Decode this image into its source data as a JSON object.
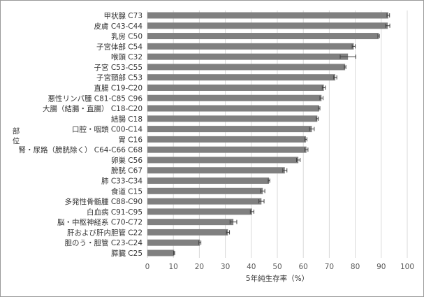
{
  "chart_data": {
    "type": "bar",
    "orientation": "horizontal",
    "xlabel": "5年純生存率（%）",
    "ylabel": "部位",
    "xlim": [
      0,
      100
    ],
    "xticks": [
      0,
      10,
      20,
      30,
      40,
      50,
      60,
      70,
      80,
      90,
      100
    ],
    "grid": true,
    "bar_color": "#808080",
    "categories": [
      "甲状腺 C73",
      "皮膚 C43-C44",
      "乳房 C50",
      "子宮体部 C54",
      "喉頭 C32",
      "子宮 C53-C55",
      "子宮頸部 C53",
      "直腸 C19-C20",
      "悪性リンパ腫 C81-C85 C96",
      "大腸（結腸・直腸） C18-C20",
      "結腸 C18",
      "口腔・咽頭 C00-C14",
      "胃 C16",
      "腎・尿路（膀胱除く） C64-C66 C68",
      "卵巣 C56",
      "膀胱 C67",
      "肺 C33-C34",
      "食道 C15",
      "多発性骨髄腫 C88-C90",
      "白血病 C91-C95",
      "脳・中枢神経系 C70-C72",
      "肝および肝内胆管 C22",
      "胆のう・胆管 C23-C24",
      "膵臓 C25"
    ],
    "values": [
      92.7,
      92.5,
      89.0,
      79.4,
      77.2,
      76.1,
      72.3,
      67.9,
      67.0,
      66.1,
      65.4,
      63.3,
      61.0,
      61.2,
      58.1,
      52.9,
      46.8,
      44.4,
      43.9,
      40.3,
      33.1,
      31.0,
      20.2,
      10.3
    ],
    "error": [
      0.5,
      0.8,
      0.3,
      0.6,
      3.0,
      0.3,
      0.6,
      0.6,
      0.6,
      0.3,
      0.4,
      0.9,
      0.4,
      0.6,
      0.7,
      0.8,
      0.3,
      0.8,
      1.0,
      0.7,
      1.3,
      0.6,
      0.4,
      0.2
    ]
  }
}
